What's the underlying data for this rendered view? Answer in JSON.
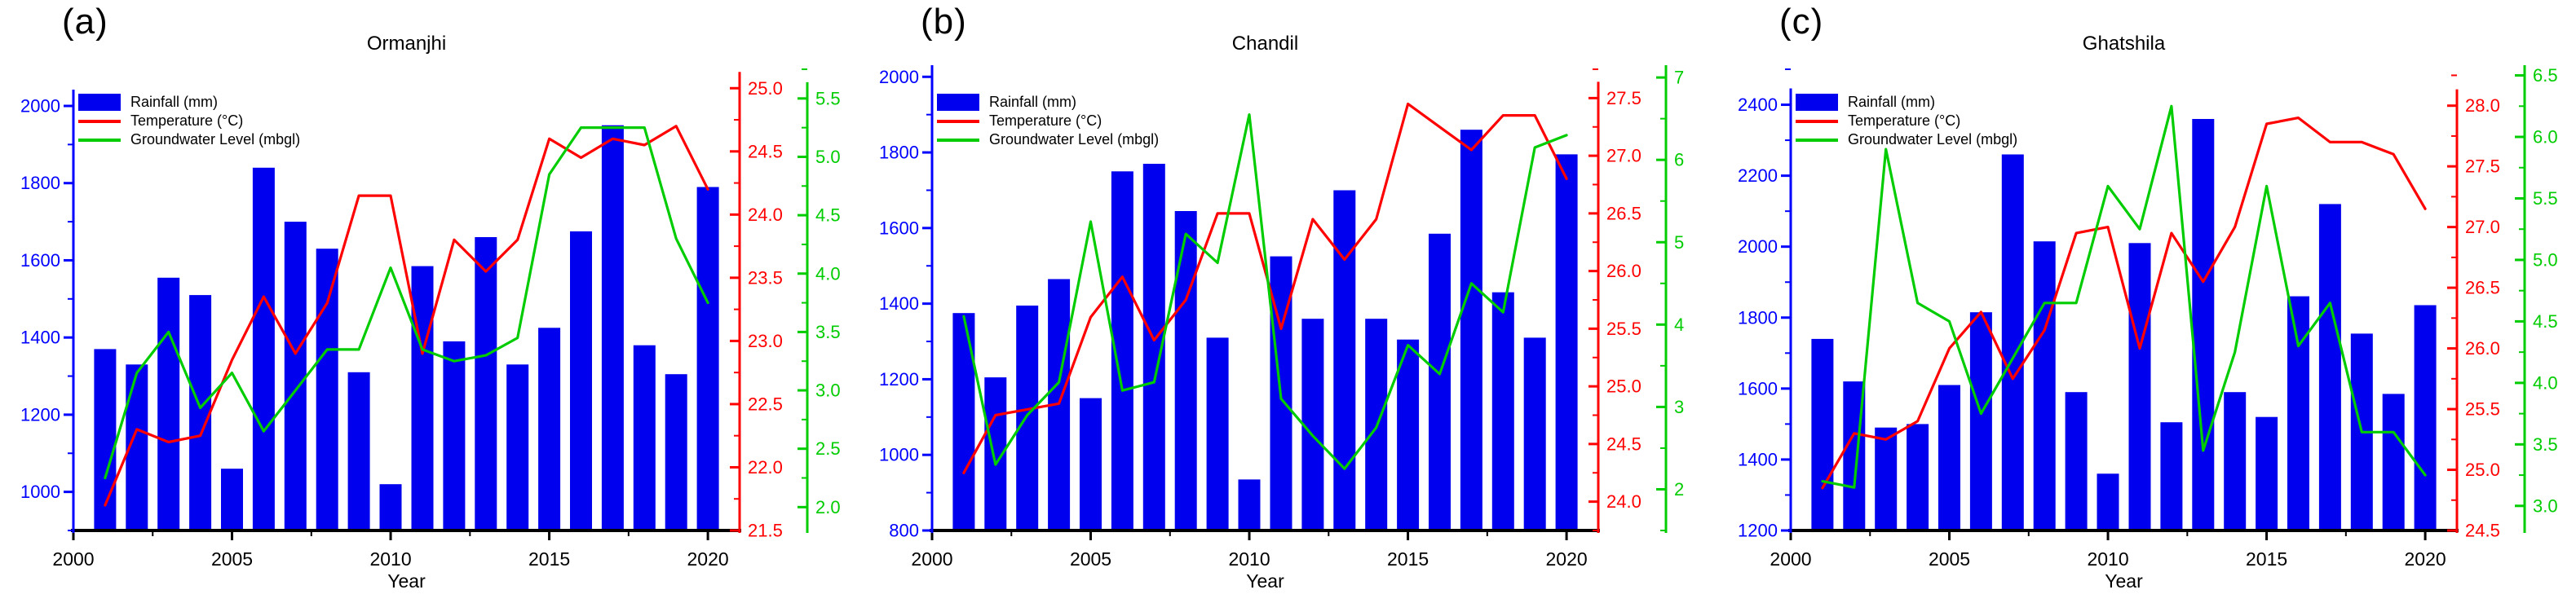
{
  "figure": {
    "kind": "three-panel climate/hydrology time-series figure",
    "xlabel": "Year",
    "colors": {
      "rainfall": "#0000ee",
      "temperature": "#ff0000",
      "groundwater": "#00cc00",
      "axis_black": "#000000"
    }
  },
  "chart_data": [
    {
      "type": "bar",
      "panel_label": "(a)",
      "title": "Ormanjhi",
      "xlabel": "Year",
      "legend_position": "top-left inside plot",
      "grid": false,
      "x": [
        2001,
        2002,
        2003,
        2004,
        2005,
        2006,
        2007,
        2008,
        2009,
        2010,
        2011,
        2012,
        2013,
        2014,
        2015,
        2016,
        2017,
        2018,
        2019,
        2020
      ],
      "x_axis": {
        "range": [
          2000,
          2021
        ],
        "major_ticks": [
          2000,
          2005,
          2010,
          2015,
          2020
        ],
        "minor_step": 2.5
      },
      "axes": {
        "left": {
          "label": "Rainfall (mm)",
          "color": "#0000ff",
          "range": [
            900,
            2095
          ],
          "tick_min": 1000,
          "tick_max": 2000,
          "major_step": 200,
          "minor_step": 100,
          "decimals": 0
        },
        "right1": {
          "label": "Temperature (°C)",
          "color": "#ff0000",
          "range": [
            21.5,
            25.15
          ],
          "tick_min": 21.5,
          "tick_max": 25.0,
          "major_step": 0.5,
          "minor_step": 0.25,
          "decimals": 1
        },
        "right2": {
          "label": "Groundwater Level (mbgl)",
          "color": "#00cc00",
          "range": [
            1.8,
            5.75
          ],
          "tick_min": 2.0,
          "tick_max": 5.5,
          "major_step": 0.5,
          "minor_step": 0.25,
          "decimals": 1
        }
      },
      "series": [
        {
          "name": "Rainfall (mm)",
          "type": "bar",
          "axis": "left",
          "color": "#0000ee",
          "values": [
            1370,
            1330,
            1555,
            1510,
            1060,
            1840,
            1700,
            1630,
            1310,
            1020,
            1585,
            1390,
            1660,
            1330,
            1425,
            1675,
            1950,
            1380,
            1305,
            1790
          ]
        },
        {
          "name": "Temperature (°C)",
          "type": "line",
          "axis": "right1",
          "color": "#ff0000",
          "values": [
            21.7,
            22.3,
            22.2,
            22.25,
            22.85,
            23.35,
            22.9,
            23.3,
            24.15,
            24.15,
            22.9,
            23.8,
            23.55,
            23.8,
            24.6,
            24.45,
            24.6,
            24.55,
            24.7,
            24.2
          ]
        },
        {
          "name": "Groundwater Level (mbgl)",
          "type": "line",
          "axis": "right2",
          "color": "#00cc00",
          "values": [
            2.25,
            3.15,
            3.5,
            2.85,
            3.15,
            2.65,
            3.0,
            3.35,
            3.35,
            4.05,
            3.35,
            3.25,
            3.3,
            3.45,
            4.85,
            5.25,
            5.25,
            5.25,
            4.3,
            3.75
          ]
        }
      ]
    },
    {
      "type": "bar",
      "panel_label": "(b)",
      "title": "Chandil",
      "xlabel": "Year",
      "legend_position": "top-left inside plot",
      "grid": false,
      "x": [
        2001,
        2002,
        2003,
        2004,
        2005,
        2006,
        2007,
        2008,
        2009,
        2010,
        2011,
        2012,
        2013,
        2014,
        2015,
        2016,
        2017,
        2018,
        2019,
        2020
      ],
      "x_axis": {
        "range": [
          2000,
          2021
        ],
        "major_ticks": [
          2000,
          2005,
          2010,
          2015,
          2020
        ],
        "minor_step": 2.5
      },
      "axes": {
        "left": {
          "label": "Rainfall (mm)",
          "color": "#0000ff",
          "range": [
            800,
            2020
          ],
          "tick_min": 800,
          "tick_max": 2000,
          "major_step": 200,
          "minor_step": 100,
          "decimals": 0
        },
        "right1": {
          "label": "Temperature (°C)",
          "color": "#ff0000",
          "range": [
            23.75,
            27.75
          ],
          "tick_min": 24.0,
          "tick_max": 27.5,
          "major_step": 0.5,
          "minor_step": 0.25,
          "decimals": 1
        },
        "right2": {
          "label": "Groundwater Level (mbgl)",
          "color": "#00cc00",
          "range": [
            1.5,
            7.1
          ],
          "tick_min": 2,
          "tick_max": 7,
          "major_step": 1,
          "minor_step": 0.5,
          "decimals": 0
        }
      },
      "series": [
        {
          "name": "Rainfall (mm)",
          "type": "bar",
          "axis": "left",
          "color": "#0000ee",
          "values": [
            1375,
            1205,
            1395,
            1465,
            1150,
            1750,
            1770,
            1645,
            1310,
            935,
            1525,
            1360,
            1700,
            1360,
            1305,
            1585,
            1860,
            1430,
            1310,
            1795
          ]
        },
        {
          "name": "Temperature (°C)",
          "type": "line",
          "axis": "right1",
          "color": "#ff0000",
          "values": [
            24.25,
            24.75,
            24.8,
            24.85,
            25.6,
            25.95,
            25.4,
            25.75,
            26.5,
            26.5,
            25.5,
            26.45,
            26.1,
            26.45,
            27.45,
            27.25,
            27.05,
            27.35,
            27.35,
            26.8
          ]
        },
        {
          "name": "Groundwater Level (mbgl)",
          "type": "line",
          "axis": "right2",
          "color": "#00cc00",
          "values": [
            4.1,
            2.3,
            2.9,
            3.3,
            5.25,
            3.2,
            3.3,
            5.1,
            4.75,
            6.55,
            3.1,
            2.65,
            2.25,
            2.75,
            3.75,
            3.4,
            4.5,
            4.15,
            6.15,
            6.3
          ]
        }
      ]
    },
    {
      "type": "bar",
      "panel_label": "(c)",
      "title": "Ghatshila",
      "xlabel": "Year",
      "legend_position": "top-left inside plot",
      "grid": false,
      "x": [
        2001,
        2002,
        2003,
        2004,
        2005,
        2006,
        2007,
        2008,
        2009,
        2010,
        2011,
        2012,
        2013,
        2014,
        2015,
        2016,
        2017,
        2018,
        2019,
        2020
      ],
      "x_axis": {
        "range": [
          2000,
          2021
        ],
        "major_ticks": [
          2000,
          2005,
          2010,
          2015,
          2020
        ],
        "minor_step": 2.5
      },
      "axes": {
        "left": {
          "label": "Rainfall (mm)",
          "color": "#0000ff",
          "range": [
            1200,
            2500
          ],
          "tick_min": 1200,
          "tick_max": 2400,
          "major_step": 200,
          "minor_step": 100,
          "decimals": 0
        },
        "right1": {
          "label": "Temperature (°C)",
          "color": "#ff0000",
          "range": [
            24.5,
            28.3
          ],
          "tick_min": 24.5,
          "tick_max": 28.0,
          "major_step": 0.5,
          "minor_step": 0.25,
          "decimals": 1
        },
        "right2": {
          "label": "Groundwater Level (mbgl)",
          "color": "#00cc00",
          "range": [
            2.8,
            6.55
          ],
          "tick_min": 3.0,
          "tick_max": 6.5,
          "major_step": 0.5,
          "minor_step": 0.25,
          "decimals": 1
        }
      },
      "series": [
        {
          "name": "Rainfall (mm)",
          "type": "bar",
          "axis": "left",
          "color": "#0000ee",
          "values": [
            1740,
            1620,
            1490,
            1500,
            1610,
            1815,
            2260,
            2015,
            1590,
            1360,
            2010,
            1505,
            2360,
            1590,
            1520,
            1860,
            2120,
            1755,
            1585,
            1835
          ]
        },
        {
          "name": "Temperature (°C)",
          "type": "line",
          "axis": "right1",
          "color": "#ff0000",
          "values": [
            24.85,
            25.3,
            25.25,
            25.4,
            26.0,
            26.3,
            25.75,
            26.15,
            26.95,
            27.0,
            26.0,
            26.95,
            26.55,
            27.0,
            27.85,
            27.9,
            27.7,
            27.7,
            27.6,
            27.15
          ]
        },
        {
          "name": "Groundwater Level (mbgl)",
          "type": "line",
          "axis": "right2",
          "color": "#00cc00",
          "values": [
            3.2,
            3.15,
            5.9,
            4.65,
            4.5,
            3.75,
            4.2,
            4.65,
            4.65,
            5.6,
            5.25,
            6.25,
            3.45,
            4.25,
            5.6,
            4.3,
            4.65,
            3.6,
            3.6,
            3.25
          ]
        }
      ]
    }
  ]
}
